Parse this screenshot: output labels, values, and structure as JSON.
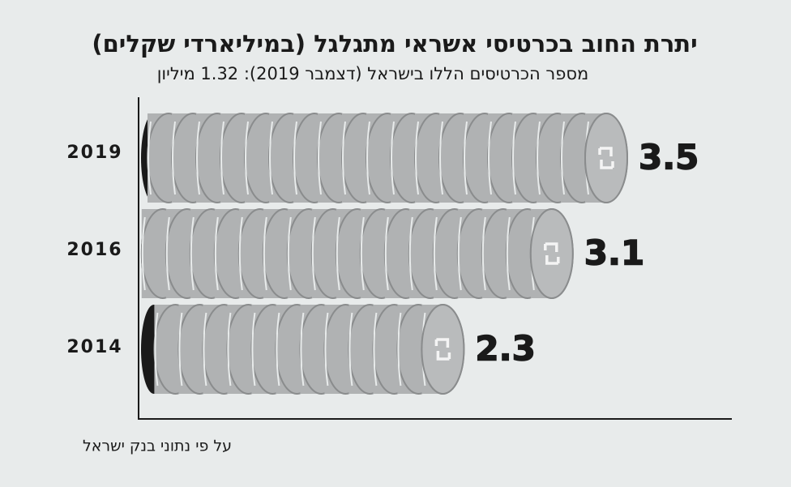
{
  "chart_data": {
    "type": "bar",
    "title": "יתרת החוב בכרטיסי אשראי מתגלגל (במיליארדי שקלים)",
    "subtitle": "מספר הכרטיסים הללו בישראל (דצמבר 2019): 1.32 מיליון",
    "categories": [
      "2019",
      "2016",
      "2014"
    ],
    "values": [
      3.5,
      3.1,
      2.3
    ],
    "color": "#b0b2b3",
    "source": "על פי נתוני בנק ישראל"
  }
}
